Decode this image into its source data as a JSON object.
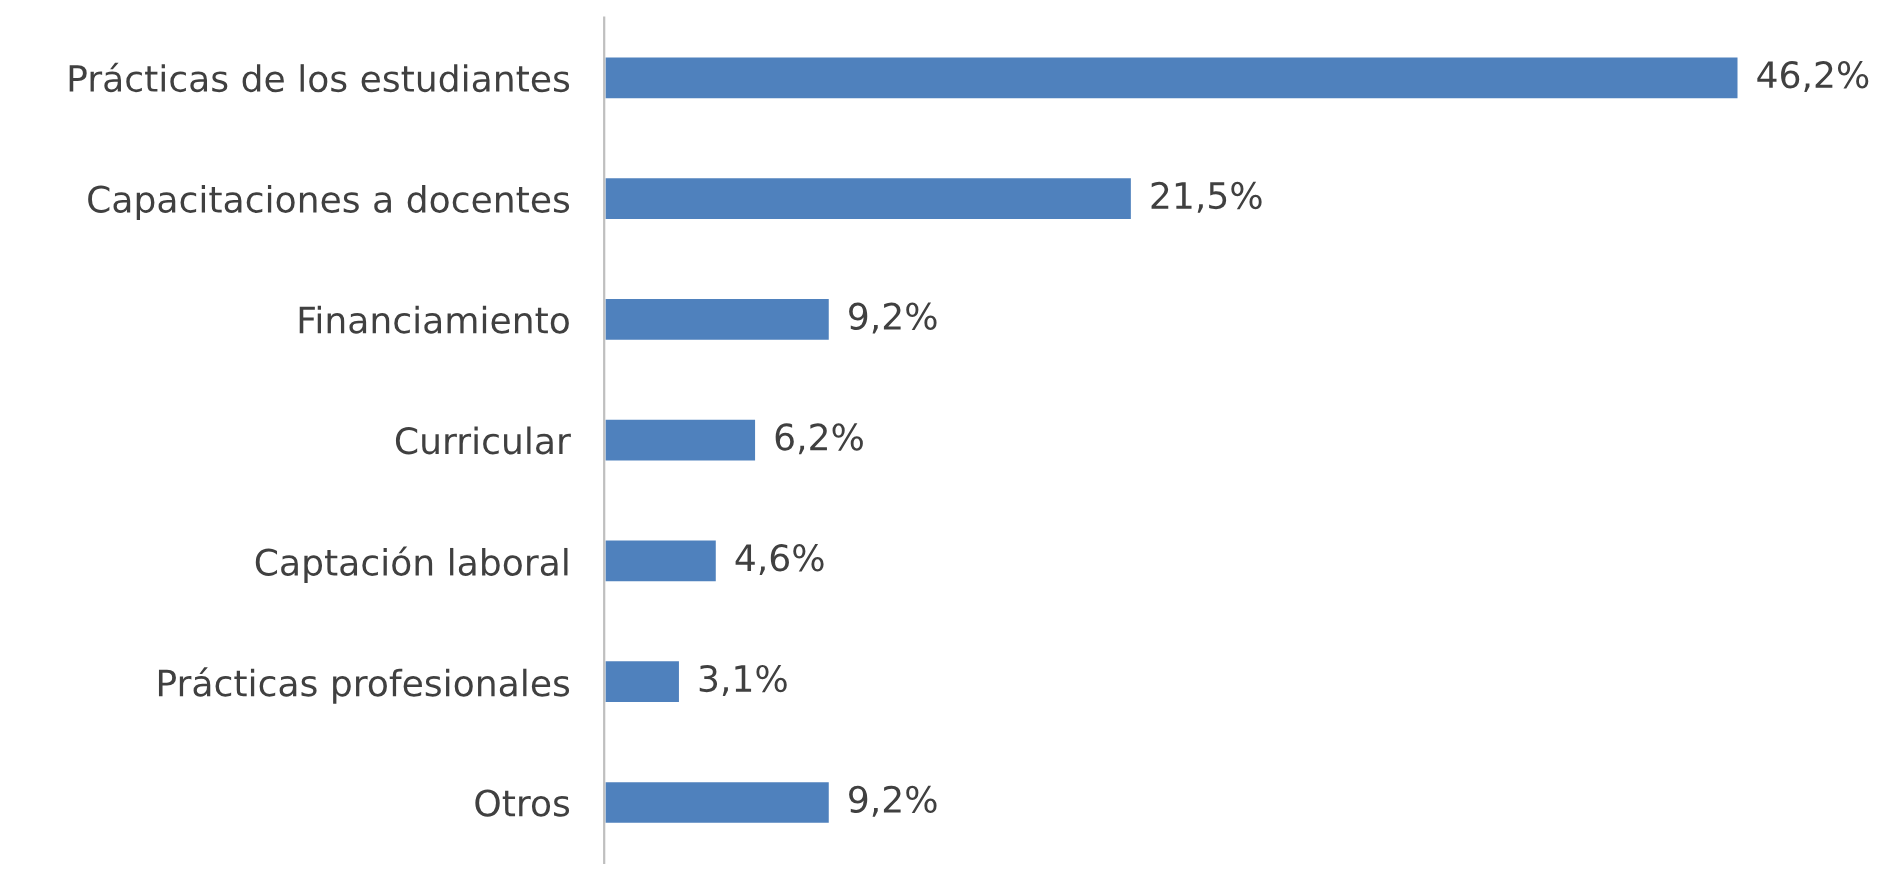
{
  "chart_data": {
    "type": "bar",
    "orientation": "horizontal",
    "categories": [
      "Prácticas de los estudiantes",
      "Capacitaciones a docentes",
      "Financiamiento",
      "Curricular",
      "Captación laboral",
      "Prácticas profesionales",
      "Otros"
    ],
    "values": [
      46.2,
      21.5,
      9.2,
      6.2,
      4.6,
      3.1,
      9.2
    ],
    "value_labels": [
      "46,2%",
      "21,5%",
      "9,2%",
      "6,2%",
      "4,6%",
      "3,1%",
      "9,2%"
    ],
    "color": "#4f81bd",
    "grid": false,
    "legend": false
  }
}
